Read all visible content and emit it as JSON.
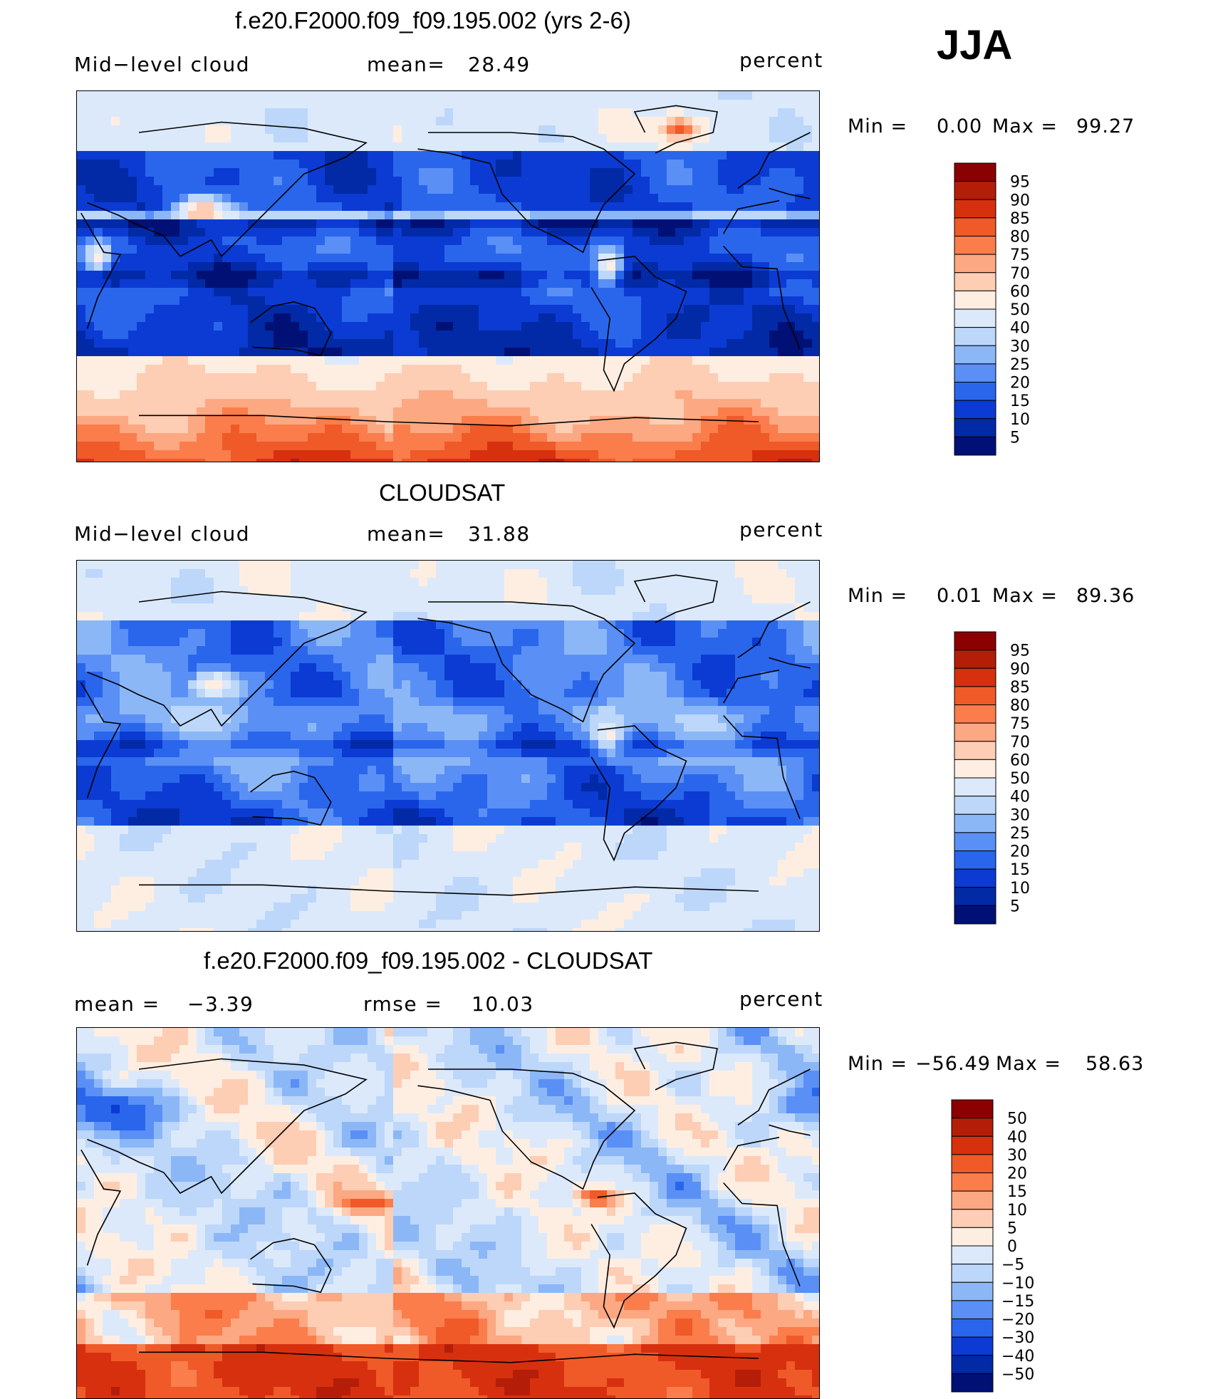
{
  "season": "JJA",
  "chart_data": [
    {
      "type": "heatmap",
      "title": "f.e20.F2000.f09_f09.195.002 (yrs 2-6)",
      "left_label": "Mid−level cloud",
      "mean_label": "mean=",
      "mean_value": "28.49",
      "units": "percent",
      "min_label": "Min =",
      "min_value": "0.00",
      "max_label": "Max =",
      "max_value": "99.27",
      "colorbar_levels": [
        "95",
        "90",
        "85",
        "80",
        "75",
        "70",
        "60",
        "50",
        "40",
        "30",
        "25",
        "20",
        "15",
        "10",
        "5"
      ],
      "colorbar_colors": [
        "#8b0000",
        "#b41e08",
        "#d7300f",
        "#ef5a28",
        "#fa7d4b",
        "#fca882",
        "#fdcdb4",
        "#feeee2",
        "#dce9fa",
        "#bcd7fa",
        "#8cb7f7",
        "#5a8ff5",
        "#2a66ec",
        "#0b3bd3",
        "#022aa6",
        "#011074"
      ],
      "field": "model"
    },
    {
      "type": "heatmap",
      "title": "CLOUDSAT",
      "left_label": "Mid−level cloud",
      "mean_label": "mean=",
      "mean_value": "31.88",
      "units": "percent",
      "min_label": "Min =",
      "min_value": "0.01",
      "max_label": "Max =",
      "max_value": "89.36",
      "colorbar_levels": [
        "95",
        "90",
        "85",
        "80",
        "75",
        "70",
        "60",
        "50",
        "40",
        "30",
        "25",
        "20",
        "15",
        "10",
        "5"
      ],
      "colorbar_colors": [
        "#8b0000",
        "#b41e08",
        "#d7300f",
        "#ef5a28",
        "#fa7d4b",
        "#fca882",
        "#fdcdb4",
        "#feeee2",
        "#dce9fa",
        "#bcd7fa",
        "#8cb7f7",
        "#5a8ff5",
        "#2a66ec",
        "#0b3bd3",
        "#022aa6",
        "#011074"
      ],
      "field": "obs"
    },
    {
      "type": "heatmap",
      "title": "f.e20.F2000.f09_f09.195.002 - CLOUDSAT",
      "left_label": "mean =",
      "left_value": "−3.39",
      "mid_label": "rmse =",
      "mid_value": "10.03",
      "units": "percent",
      "min_label": "Min =",
      "min_value": "−56.49",
      "max_label": "Max =",
      "max_value": "58.63",
      "colorbar_levels": [
        "50",
        "40",
        "30",
        "20",
        "15",
        "10",
        "5",
        "0",
        "−5",
        "−10",
        "−15",
        "−20",
        "−30",
        "−40",
        "−50"
      ],
      "colorbar_colors": [
        "#8b0000",
        "#b41e08",
        "#d7300f",
        "#ef5a28",
        "#fa7d4b",
        "#fca882",
        "#fdcdb4",
        "#feeee2",
        "#dce9fa",
        "#bcd7fa",
        "#8cb7f7",
        "#5a8ff5",
        "#2a66ec",
        "#0b3bd3",
        "#022aa6",
        "#011074"
      ],
      "field": "diff"
    }
  ]
}
